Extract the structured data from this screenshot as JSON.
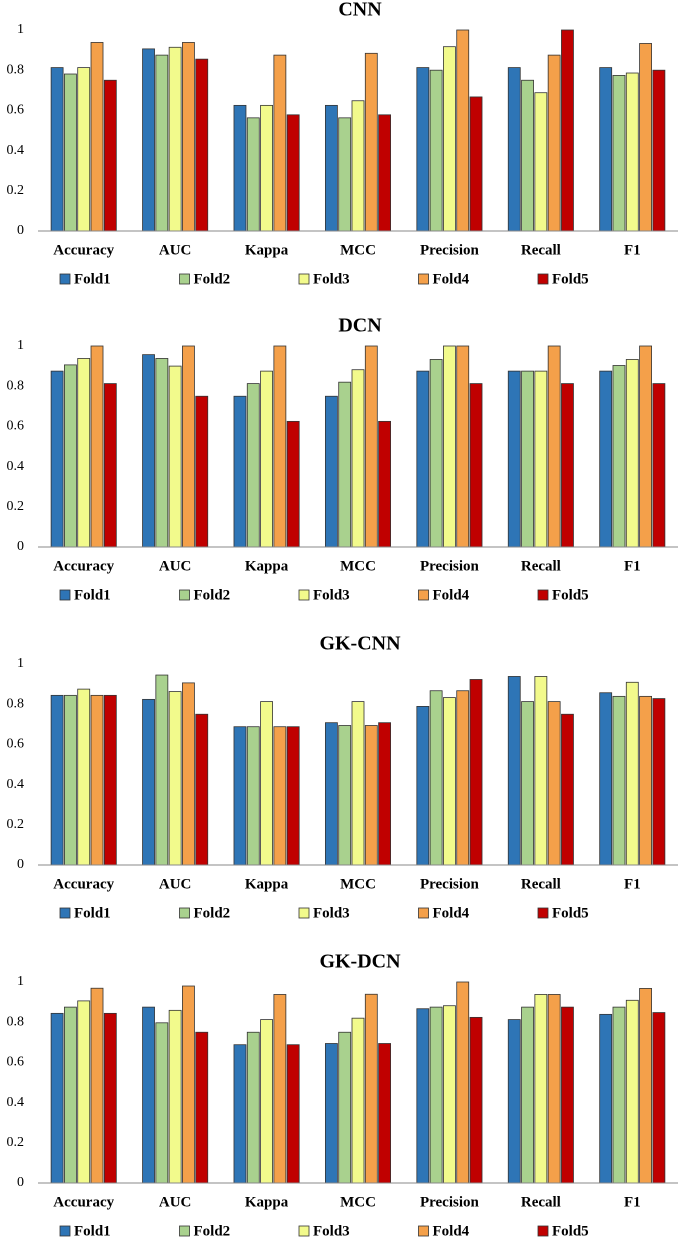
{
  "chart_data": [
    {
      "type": "bar",
      "title": "CNN",
      "categories": [
        "Accuracy",
        "AUC",
        "Kappa",
        "MCC",
        "Precision",
        "Recall",
        "F1"
      ],
      "series": [
        {
          "name": "Fold1",
          "color": "#2e75b6",
          "values": [
            0.813,
            0.906,
            0.625,
            0.625,
            0.813,
            0.813,
            0.813
          ]
        },
        {
          "name": "Fold2",
          "color": "#a9d18e",
          "values": [
            0.781,
            0.875,
            0.563,
            0.563,
            0.8,
            0.75,
            0.774
          ]
        },
        {
          "name": "Fold3",
          "color": "#f2fa8c",
          "values": [
            0.813,
            0.914,
            0.625,
            0.648,
            0.917,
            0.688,
            0.786
          ]
        },
        {
          "name": "Fold4",
          "color": "#f4a04a",
          "values": [
            0.938,
            0.938,
            0.875,
            0.884,
            1.0,
            0.875,
            0.933
          ]
        },
        {
          "name": "Fold5",
          "color": "#c00000",
          "values": [
            0.75,
            0.855,
            0.578,
            0.578,
            0.667,
            1.0,
            0.8
          ]
        }
      ],
      "ylim": [
        0,
        1
      ],
      "yticks": [
        0,
        0.2,
        0.4,
        0.6,
        0.8,
        1
      ],
      "grid": false,
      "legend": "bottom"
    },
    {
      "type": "bar",
      "title": "DCN",
      "categories": [
        "Accuracy",
        "AUC",
        "Kappa",
        "MCC",
        "Precision",
        "Recall",
        "F1"
      ],
      "series": [
        {
          "name": "Fold1",
          "color": "#2e75b6",
          "values": [
            0.875,
            0.957,
            0.75,
            0.75,
            0.875,
            0.875,
            0.875
          ]
        },
        {
          "name": "Fold2",
          "color": "#a9d18e",
          "values": [
            0.906,
            0.938,
            0.813,
            0.82,
            0.933,
            0.875,
            0.903
          ]
        },
        {
          "name": "Fold3",
          "color": "#f2fa8c",
          "values": [
            0.938,
            0.9,
            0.875,
            0.882,
            1.0,
            0.875,
            0.933
          ]
        },
        {
          "name": "Fold4",
          "color": "#f4a04a",
          "values": [
            1,
            1,
            1,
            1,
            1,
            1,
            1
          ]
        },
        {
          "name": "Fold5",
          "color": "#c00000",
          "values": [
            0.813,
            0.75,
            0.625,
            0.625,
            0.813,
            0.813,
            0.813
          ]
        }
      ],
      "ylim": [
        0,
        1
      ],
      "yticks": [
        0,
        0.2,
        0.4,
        0.6,
        0.8,
        1
      ],
      "grid": false,
      "legend": "bottom"
    },
    {
      "type": "bar",
      "title": "GK-CNN",
      "categories": [
        "Accuracy",
        "AUC",
        "Kappa",
        "MCC",
        "Precision",
        "Recall",
        "F1"
      ],
      "series": [
        {
          "name": "Fold1",
          "color": "#2e75b6",
          "values": [
            0.844,
            0.824,
            0.688,
            0.708,
            0.789,
            0.938,
            0.857
          ]
        },
        {
          "name": "Fold2",
          "color": "#a9d18e",
          "values": [
            0.844,
            0.945,
            0.688,
            0.694,
            0.867,
            0.813,
            0.839
          ]
        },
        {
          "name": "Fold3",
          "color": "#f2fa8c",
          "values": [
            0.875,
            0.863,
            0.813,
            0.813,
            0.833,
            0.938,
            0.909
          ]
        },
        {
          "name": "Fold4",
          "color": "#f4a04a",
          "values": [
            0.844,
            0.906,
            0.688,
            0.694,
            0.867,
            0.813,
            0.839
          ]
        },
        {
          "name": "Fold5",
          "color": "#c00000",
          "values": [
            0.844,
            0.75,
            0.688,
            0.708,
            0.923,
            0.75,
            0.828
          ]
        }
      ],
      "ylim": [
        0,
        1
      ],
      "yticks": [
        0,
        0.2,
        0.4,
        0.6,
        0.8,
        1
      ],
      "grid": false,
      "legend": "bottom"
    },
    {
      "type": "bar",
      "title": "GK-DCN",
      "categories": [
        "Accuracy",
        "AUC",
        "Kappa",
        "MCC",
        "Precision",
        "Recall",
        "F1"
      ],
      "series": [
        {
          "name": "Fold1",
          "color": "#2e75b6",
          "values": [
            0.844,
            0.875,
            0.688,
            0.694,
            0.867,
            0.813,
            0.839
          ]
        },
        {
          "name": "Fold2",
          "color": "#a9d18e",
          "values": [
            0.875,
            0.797,
            0.75,
            0.75,
            0.875,
            0.875,
            0.875
          ]
        },
        {
          "name": "Fold3",
          "color": "#f2fa8c",
          "values": [
            0.906,
            0.859,
            0.813,
            0.82,
            0.882,
            0.938,
            0.909
          ]
        },
        {
          "name": "Fold4",
          "color": "#f4a04a",
          "values": [
            0.969,
            0.98,
            0.938,
            0.939,
            1.0,
            0.938,
            0.968
          ]
        },
        {
          "name": "Fold5",
          "color": "#c00000",
          "values": [
            0.844,
            0.75,
            0.688,
            0.694,
            0.824,
            0.875,
            0.848
          ]
        }
      ],
      "ylim": [
        0,
        1
      ],
      "yticks": [
        0,
        0.2,
        0.4,
        0.6,
        0.8,
        1
      ],
      "grid": false,
      "legend": "bottom"
    }
  ]
}
